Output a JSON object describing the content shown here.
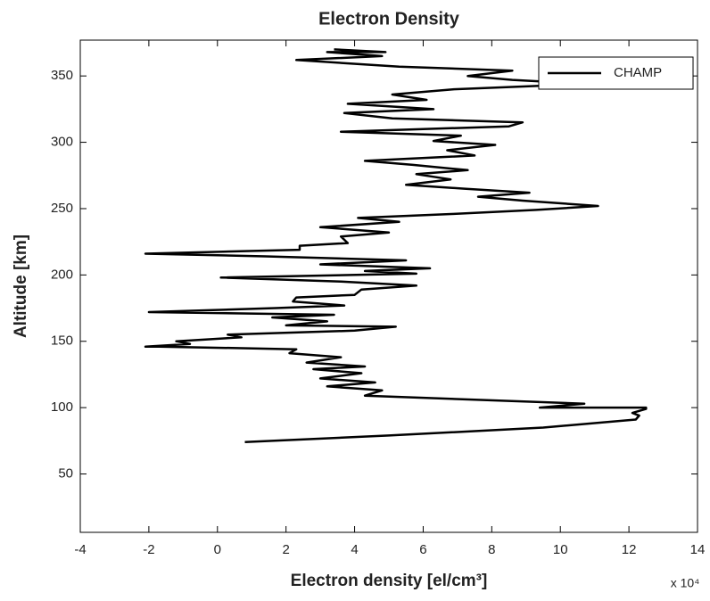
{
  "chart_data": {
    "type": "line",
    "title": "Electron Density",
    "xlabel": "Electron density [el/cm³]",
    "ylabel": "Altitude [km]",
    "x_scale_label": "x 10⁴",
    "xlim": [
      -4,
      14
    ],
    "xticks": [
      -4,
      -2,
      0,
      2,
      4,
      6,
      8,
      10,
      12,
      14
    ],
    "ylim": [
      6,
      377
    ],
    "yticks": [
      50,
      100,
      150,
      200,
      250,
      300,
      350
    ],
    "legend": "northeast",
    "x": [
      0.8,
      5,
      9.5,
      12.2,
      12.3,
      12.1,
      12.5,
      12.5,
      9.4,
      10.7,
      4.3,
      4.8,
      3.2,
      4.6,
      3,
      4.2,
      2.8,
      4.3,
      2.6,
      3.6,
      2.1,
      2.3,
      -1.7,
      -2.1,
      -0.8,
      -1.2,
      0.7,
      0.3,
      4,
      5.2,
      2,
      3.2,
      1.6,
      3.4,
      -2,
      1.7,
      3.7,
      2.2,
      2.3,
      4,
      4.2,
      5.8,
      3.6,
      0.1,
      5.8,
      4.3,
      6.2,
      3,
      5.5,
      1.4,
      -2.1,
      2.4,
      2.4,
      3.8,
      3.6,
      5,
      3,
      5.3,
      4.1,
      6.9,
      9.3,
      11.1,
      8.9,
      7.6,
      9.1,
      7.2,
      5.5,
      6.8,
      5.8,
      7.3,
      5.7,
      4.3,
      7.5,
      6.7,
      8.1,
      6.3,
      7.1,
      3.6,
      8.5,
      8.9,
      5.1,
      3.7,
      6.3,
      3.8,
      6.1,
      5.1,
      6.9,
      10.8,
      8.6,
      7.3,
      8.6,
      5.3,
      2.3,
      4.8,
      3.2,
      4.9,
      3.4
    ],
    "series": [
      {
        "name": "CHAMP",
        "color": "#000000",
        "values": [
          74,
          79,
          85,
          91,
          94,
          96,
          99,
          100,
          100,
          103,
          109,
          113,
          116,
          119,
          122,
          126,
          129,
          131,
          134,
          138,
          141,
          144,
          146,
          146,
          148,
          150,
          153,
          155,
          158,
          161,
          162,
          165,
          168,
          170,
          172,
          175,
          177,
          180,
          183,
          185,
          189,
          192,
          195,
          198,
          201,
          203,
          205,
          208,
          211,
          214,
          216,
          219,
          222,
          224,
          229,
          232,
          236,
          240,
          243,
          246,
          249,
          252,
          256,
          259,
          262,
          265,
          268,
          272,
          276,
          279,
          283,
          286,
          290,
          294,
          298,
          301,
          305,
          308,
          312,
          315,
          318,
          322,
          325,
          329,
          332,
          336,
          340,
          344,
          347,
          350,
          354,
          357,
          362,
          365,
          368,
          368,
          370
        ]
      }
    ]
  }
}
